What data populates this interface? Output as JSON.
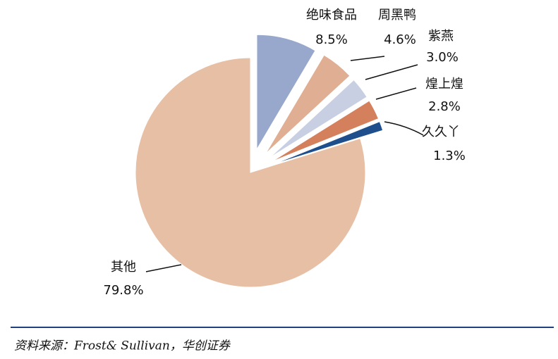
{
  "chart_data": {
    "type": "pie",
    "categories": [
      "绝味食品",
      "周黑鸭",
      "紫燕",
      "煌上煌",
      "久久丫",
      "其他"
    ],
    "values": [
      8.5,
      4.6,
      3.0,
      2.8,
      1.3,
      79.8
    ],
    "value_labels": [
      "8.5%",
      "4.6%",
      "3.0%",
      "2.8%",
      "1.3%",
      "79.8%"
    ],
    "colors": [
      "#97a8cc",
      "#e0ae92",
      "#c8cfe3",
      "#d4805c",
      "#1f4e8c",
      "#e6bfa5"
    ],
    "source": "资料来源：Frost& Sullivan，华创证券"
  }
}
